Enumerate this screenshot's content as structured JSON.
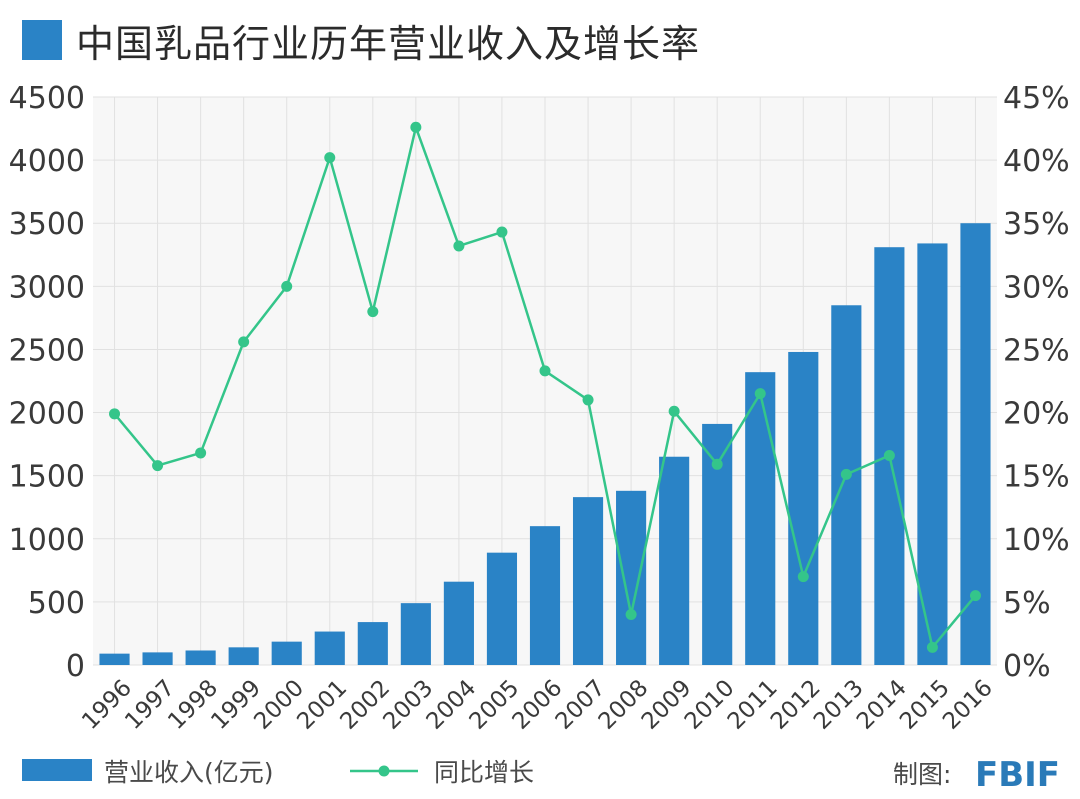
{
  "title": "中国乳品行业历年营业收入及增长率",
  "colors": {
    "bar": "#2a83c6",
    "line": "#34c58a",
    "grid": "#e1e1e1",
    "plot_bg": "#f7f7f7"
  },
  "legend": {
    "bar_label": "营业收入(亿元)",
    "line_label": "同比增长"
  },
  "credit": {
    "label": "制图:",
    "brand": "FBIF"
  },
  "chart_data": {
    "type": "bar",
    "categories": [
      "1996",
      "1997",
      "1998",
      "1999",
      "2000",
      "2001",
      "2002",
      "2003",
      "2004",
      "2005",
      "2006",
      "2007",
      "2008",
      "2009",
      "2010",
      "2011",
      "2012",
      "2013",
      "2014",
      "2015",
      "2016"
    ],
    "series": [
      {
        "name": "营业收入(亿元)",
        "type": "bar",
        "axis": "left",
        "values": [
          90,
          100,
          115,
          140,
          185,
          265,
          340,
          490,
          660,
          890,
          1100,
          1330,
          1380,
          1650,
          1910,
          2320,
          2480,
          2850,
          3310,
          3340,
          3500
        ]
      },
      {
        "name": "同比增长",
        "type": "line",
        "axis": "right",
        "values": [
          19.9,
          15.8,
          16.8,
          25.6,
          30.0,
          40.2,
          28.0,
          42.6,
          33.2,
          34.3,
          23.3,
          21.0,
          4.0,
          20.1,
          15.9,
          21.5,
          7.0,
          15.1,
          16.6,
          1.4,
          5.5
        ]
      }
    ],
    "ylim": [
      0,
      4500
    ],
    "yticks": [
      "0",
      "500",
      "1000",
      "1500",
      "2000",
      "2500",
      "3000",
      "3500",
      "4000",
      "4500"
    ],
    "y2lim": [
      0,
      45
    ],
    "y2ticks": [
      "0%",
      "5%",
      "10%",
      "15%",
      "20%",
      "25%",
      "30%",
      "35%",
      "40%",
      "45%"
    ],
    "grid": true,
    "legend_position": "bottom-left"
  }
}
